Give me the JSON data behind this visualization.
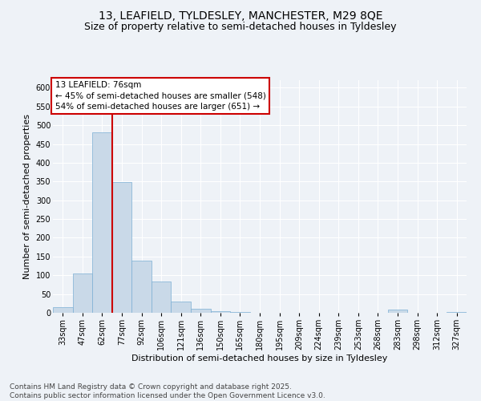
{
  "title_line1": "13, LEAFIELD, TYLDESLEY, MANCHESTER, M29 8QE",
  "title_line2": "Size of property relative to semi-detached houses in Tyldesley",
  "xlabel": "Distribution of semi-detached houses by size in Tyldesley",
  "ylabel": "Number of semi-detached properties",
  "bar_color": "#c9d9e8",
  "bar_edge_color": "#7bafd4",
  "categories": [
    "33sqm",
    "47sqm",
    "62sqm",
    "77sqm",
    "92sqm",
    "106sqm",
    "121sqm",
    "136sqm",
    "150sqm",
    "165sqm",
    "180sqm",
    "195sqm",
    "209sqm",
    "224sqm",
    "239sqm",
    "253sqm",
    "268sqm",
    "283sqm",
    "298sqm",
    "312sqm",
    "327sqm"
  ],
  "values": [
    15,
    105,
    480,
    348,
    140,
    83,
    31,
    11,
    5,
    2,
    1,
    0,
    0,
    0,
    0,
    0,
    0,
    8,
    0,
    0,
    3
  ],
  "ylim": [
    0,
    620
  ],
  "yticks": [
    0,
    50,
    100,
    150,
    200,
    250,
    300,
    350,
    400,
    450,
    500,
    550,
    600
  ],
  "vline_index": 2.5,
  "legend_title": "13 LEAFIELD: 76sqm",
  "legend_line1": "← 45% of semi-detached houses are smaller (548)",
  "legend_line2": "54% of semi-detached houses are larger (651) →",
  "vline_color": "#cc0000",
  "legend_box_color": "#cc0000",
  "footer": "Contains HM Land Registry data © Crown copyright and database right 2025.\nContains public sector information licensed under the Open Government Licence v3.0.",
  "background_color": "#eef2f7",
  "grid_color": "#ffffff",
  "title_fontsize": 10,
  "subtitle_fontsize": 9,
  "axis_label_fontsize": 8,
  "tick_fontsize": 7,
  "legend_fontsize": 7.5,
  "footer_fontsize": 6.5
}
